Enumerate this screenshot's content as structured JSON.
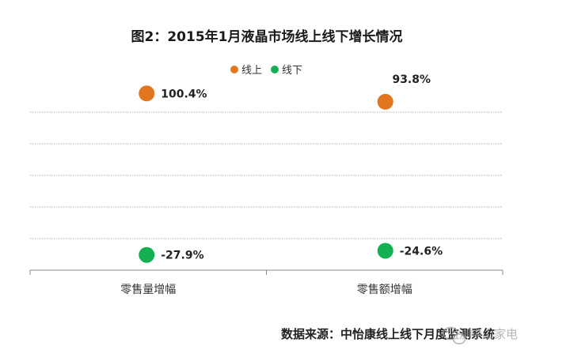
{
  "chart_data": {
    "type": "scatter",
    "title": "图2：2015年1月液晶市场线上线下增长情况",
    "categories": [
      "零售量增幅",
      "零售额增幅"
    ],
    "series": [
      {
        "name": "线上",
        "color": "#e2761f",
        "values": [
          100.4,
          93.8
        ],
        "labels": [
          "100.4%",
          "93.8%"
        ]
      },
      {
        "name": "线下",
        "color": "#12b050",
        "values": [
          -27.9,
          -24.6
        ],
        "labels": [
          "-27.9%",
          "-24.6%"
        ]
      }
    ],
    "ylim": [
      -40,
      110
    ],
    "grid": true,
    "legend": "top-center"
  },
  "source": "数据来源：中怡康线上线下月度监测系统",
  "watermark": "中山家电"
}
